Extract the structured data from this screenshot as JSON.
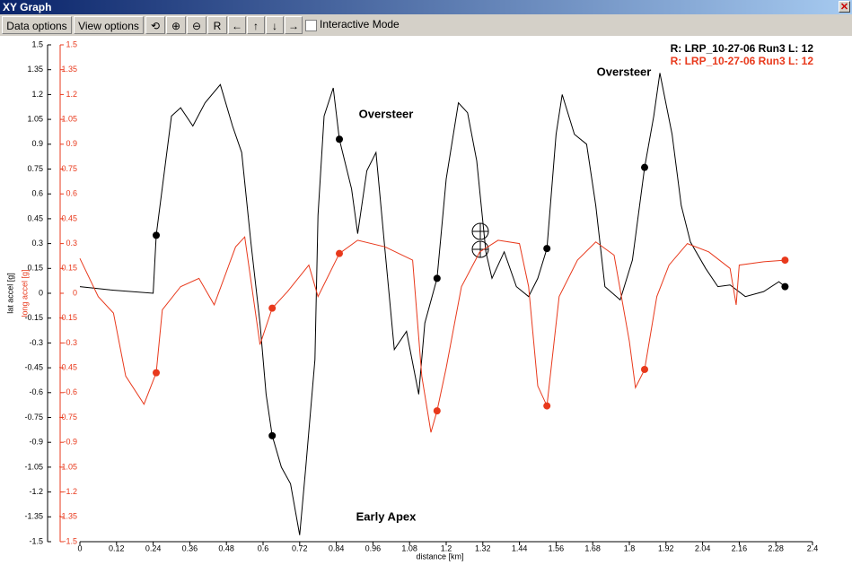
{
  "window": {
    "title": "XY Graph"
  },
  "toolbar": {
    "buttons": [
      "Data options",
      "View options"
    ],
    "checkbox": "Interactive Mode"
  },
  "chart_data": {
    "type": "line",
    "xlabel": "distance [km]",
    "ylabel": "lat accel [g]",
    "y2label": "long accel [g]",
    "xlim": [
      0,
      2.4
    ],
    "xticks": [
      0,
      0.12,
      0.24,
      0.36,
      0.48,
      0.6,
      0.72,
      0.84,
      0.96,
      1.08,
      1.2,
      1.32,
      1.44,
      1.56,
      1.68,
      1.8,
      1.92,
      2.04,
      2.16,
      2.28,
      2.4
    ],
    "ylim": [
      -1.5,
      1.5
    ],
    "yticks": [
      -1.5,
      -1.35,
      -1.2,
      -1.05,
      -0.9,
      -0.75,
      -0.6,
      -0.45,
      -0.3,
      -0.15,
      0,
      0.15,
      0.3,
      0.45,
      0.6,
      0.75,
      0.9,
      1.05,
      1.2,
      1.35,
      1.5
    ],
    "y2lim": [
      -1.5,
      1.5
    ],
    "y2ticks": [
      -1.5,
      -1.35,
      -1.2,
      -1.05,
      -0.9,
      -0.75,
      -0.6,
      -0.45,
      -0.3,
      -0.15,
      0,
      0.15,
      0.3,
      0.45,
      0.6,
      0.75,
      0.9,
      1.05,
      1.2,
      1.35,
      1.5
    ],
    "annotations": [
      "Oversteer",
      "Oversteer",
      "Early Apex"
    ],
    "series": [
      {
        "name": "R: LRP_10-27-06 Run3  L: 12",
        "color": "#000000",
        "x": [
          0,
          0.1,
          0.24,
          0.25,
          0.3,
          0.33,
          0.37,
          0.41,
          0.46,
          0.5,
          0.53,
          0.56,
          0.59,
          0.61,
          0.63,
          0.66,
          0.69,
          0.72,
          0.74,
          0.77,
          0.78,
          0.8,
          0.83,
          0.85,
          0.89,
          0.91,
          0.94,
          0.97,
          1.0,
          1.03,
          1.07,
          1.11,
          1.13,
          1.17,
          1.2,
          1.24,
          1.27,
          1.3,
          1.33,
          1.35,
          1.39,
          1.43,
          1.47,
          1.5,
          1.53,
          1.56,
          1.58,
          1.62,
          1.66,
          1.69,
          1.72,
          1.77,
          1.81,
          1.85,
          1.88,
          1.9,
          1.94,
          1.97,
          2.0,
          2.05,
          2.09,
          2.13,
          2.18,
          2.24,
          2.29,
          2.31
        ],
        "values": [
          0.04,
          0.02,
          0.0,
          0.35,
          1.07,
          1.12,
          1.01,
          1.15,
          1.26,
          1.01,
          0.85,
          0.31,
          -0.18,
          -0.61,
          -0.86,
          -1.05,
          -1.15,
          -1.46,
          -1.05,
          -0.4,
          0.47,
          1.07,
          1.24,
          0.93,
          0.63,
          0.36,
          0.74,
          0.85,
          0.25,
          -0.34,
          -0.23,
          -0.61,
          -0.18,
          0.09,
          0.69,
          1.15,
          1.09,
          0.8,
          0.25,
          0.09,
          0.25,
          0.04,
          -0.02,
          0.09,
          0.27,
          0.96,
          1.2,
          0.96,
          0.9,
          0.53,
          0.04,
          -0.04,
          0.2,
          0.76,
          1.07,
          1.33,
          0.96,
          0.53,
          0.31,
          0.15,
          0.04,
          0.05,
          -0.02,
          0.01,
          0.07,
          0.04
        ],
        "markers": {
          "x": [
            0.25,
            0.63,
            0.85,
            1.17,
            1.53,
            1.85,
            2.31
          ],
          "values": [
            0.35,
            -0.86,
            0.93,
            0.09,
            0.27,
            0.76,
            0.04
          ]
        }
      },
      {
        "name": "R: LRP_10-27-06 Run3  L: 12",
        "color": "#e8391c",
        "axis": "y2",
        "x": [
          0,
          0.06,
          0.11,
          0.15,
          0.21,
          0.25,
          0.27,
          0.33,
          0.39,
          0.44,
          0.51,
          0.54,
          0.59,
          0.63,
          0.68,
          0.75,
          0.78,
          0.85,
          0.91,
          1.0,
          1.09,
          1.12,
          1.15,
          1.17,
          1.2,
          1.25,
          1.31,
          1.37,
          1.44,
          1.47,
          1.5,
          1.53,
          1.57,
          1.63,
          1.69,
          1.75,
          1.8,
          1.82,
          1.85,
          1.89,
          1.93,
          1.99,
          2.06,
          2.13,
          2.15,
          2.16,
          2.24,
          2.31
        ],
        "values": [
          0.21,
          -0.02,
          -0.12,
          -0.5,
          -0.67,
          -0.48,
          -0.1,
          0.04,
          0.09,
          -0.07,
          0.28,
          0.34,
          -0.31,
          -0.09,
          0.01,
          0.17,
          -0.02,
          0.24,
          0.32,
          0.28,
          0.2,
          -0.5,
          -0.84,
          -0.71,
          -0.45,
          0.04,
          0.25,
          0.32,
          0.3,
          0.04,
          -0.56,
          -0.68,
          -0.02,
          0.2,
          0.31,
          0.23,
          -0.29,
          -0.57,
          -0.46,
          -0.02,
          0.17,
          0.3,
          0.25,
          0.15,
          -0.07,
          0.17,
          0.19,
          0.2
        ],
        "markers": {
          "x": [
            0.25,
            0.63,
            0.85,
            1.17,
            1.53,
            1.85,
            2.31
          ],
          "values": [
            -0.48,
            -0.09,
            0.24,
            -0.71,
            -0.68,
            -0.46,
            0.2
          ]
        }
      }
    ]
  }
}
